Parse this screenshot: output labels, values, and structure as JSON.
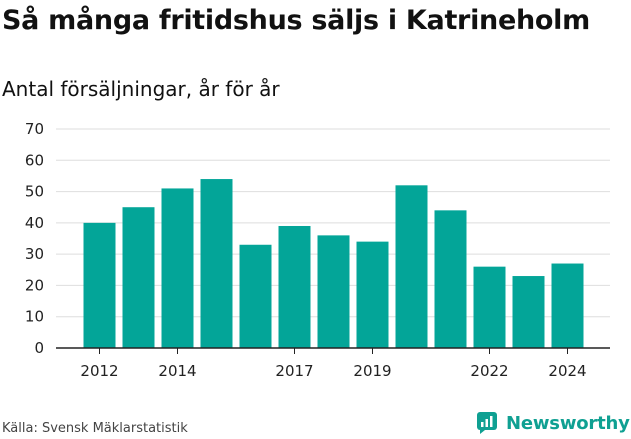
{
  "chart_data": {
    "type": "bar",
    "title": "Så många fritidshus säljs i Katrineholm",
    "subtitle": "Antal försäljningar, år för år",
    "xlabel": "",
    "ylabel": "",
    "categories": [
      2012,
      2013,
      2014,
      2015,
      2016,
      2017,
      2018,
      2019,
      2020,
      2021,
      2022,
      2023,
      2024
    ],
    "values": [
      40,
      45,
      51,
      54,
      33,
      39,
      36,
      34,
      52,
      44,
      26,
      23,
      27
    ],
    "x_tick_labels": [
      "2012",
      "2014",
      "2017",
      "2019",
      "2022",
      "2024"
    ],
    "y_ticks": [
      0,
      10,
      20,
      30,
      40,
      50,
      60,
      70
    ],
    "ylim": [
      0,
      70
    ],
    "grid": true,
    "bar_color": "#03a598"
  },
  "footer": {
    "source": "Källa: Svensk Mäklarstatistik",
    "brand": "Newsworthy",
    "brand_icon": "newsworthy-logo-icon",
    "brand_color": "#0fa092"
  }
}
